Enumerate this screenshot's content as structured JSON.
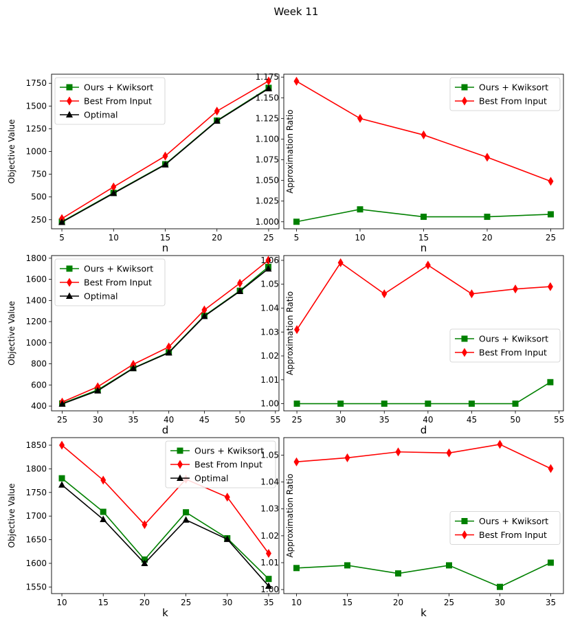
{
  "title": "Week 11",
  "chart_data": [
    {
      "type": "line",
      "xlabel": "n",
      "ylabel": "Objective Value",
      "x": [
        5,
        10,
        15,
        20,
        25
      ],
      "xticks": [
        5,
        10,
        15,
        20,
        25
      ],
      "yticks": [
        250,
        500,
        750,
        1000,
        1250,
        1500,
        1750
      ],
      "xlim": [
        4.0,
        26.0
      ],
      "ylim": [
        150,
        1850
      ],
      "legend": "top-left",
      "series": [
        {
          "name": "Ours + Kwiksort",
          "color": "#008000",
          "marker": "square",
          "values": [
            228,
            545,
            860,
            1340,
            1700
          ]
        },
        {
          "name": "Best From Input",
          "color": "#ff0000",
          "marker": "diamond",
          "values": [
            262,
            610,
            950,
            1444,
            1775
          ]
        },
        {
          "name": "Optimal",
          "color": "#000000",
          "marker": "triangle",
          "values": [
            222,
            540,
            855,
            1335,
            1692
          ]
        }
      ]
    },
    {
      "type": "line",
      "xlabel": "n",
      "ylabel": "Approximation Ratio",
      "x": [
        5,
        10,
        15,
        20,
        25
      ],
      "xticks": [
        5,
        10,
        15,
        20,
        25
      ],
      "yticks": [
        "1.000",
        "1.025",
        "1.050",
        "1.075",
        "1.100",
        "1.125",
        "1.150",
        "1.175"
      ],
      "xlim": [
        4.0,
        26.0
      ],
      "ylim": [
        0.9915,
        1.1785
      ],
      "legend": "top-right",
      "series": [
        {
          "name": "Ours + Kwiksort",
          "color": "#008000",
          "marker": "square",
          "values": [
            1.0,
            1.015,
            1.006,
            1.006,
            1.009
          ]
        },
        {
          "name": "Best From Input",
          "color": "#ff0000",
          "marker": "diamond",
          "values": [
            1.17,
            1.125,
            1.105,
            1.078,
            1.049
          ]
        }
      ]
    },
    {
      "type": "line",
      "xlabel": "d",
      "ylabel": "Objective Value",
      "x": [
        25,
        30,
        35,
        40,
        45,
        50,
        54
      ],
      "xticks": [
        25,
        30,
        35,
        40,
        45,
        50,
        55
      ],
      "yticks": [
        400,
        600,
        800,
        1000,
        1200,
        1400,
        1600,
        1800
      ],
      "xlim": [
        23.5,
        55.5
      ],
      "ylim": [
        355,
        1825
      ],
      "legend": "top-left",
      "series": [
        {
          "name": "Ours + Kwiksort",
          "color": "#008000",
          "marker": "square",
          "values": [
            425,
            553,
            760,
            910,
            1255,
            1492,
            1718
          ]
        },
        {
          "name": "Best From Input",
          "color": "#ff0000",
          "marker": "diamond",
          "values": [
            438,
            583,
            795,
            960,
            1310,
            1563,
            1780
          ]
        },
        {
          "name": "Optimal",
          "color": "#000000",
          "marker": "triangle",
          "values": [
            420,
            545,
            757,
            905,
            1250,
            1487,
            1700
          ]
        }
      ]
    },
    {
      "type": "line",
      "xlabel": "d",
      "ylabel": "Approximation Ratio",
      "x": [
        25,
        30,
        35,
        40,
        45,
        50,
        54
      ],
      "xticks": [
        25,
        30,
        35,
        40,
        45,
        50,
        55
      ],
      "yticks": [
        "1.00",
        "1.01",
        "1.02",
        "1.03",
        "1.04",
        "1.05",
        "1.06"
      ],
      "xlim": [
        23.5,
        55.5
      ],
      "ylim": [
        0.997,
        1.062
      ],
      "legend": "center-right",
      "series": [
        {
          "name": "Ours + Kwiksort",
          "color": "#008000",
          "marker": "square",
          "values": [
            1.0,
            1.0,
            1.0,
            1.0,
            1.0,
            1.0,
            1.009
          ]
        },
        {
          "name": "Best From Input",
          "color": "#ff0000",
          "marker": "diamond",
          "values": [
            1.031,
            1.059,
            1.046,
            1.058,
            1.046,
            1.048,
            1.049
          ]
        }
      ]
    },
    {
      "type": "line",
      "xlabel": "k",
      "ylabel": "Objective Value",
      "x": [
        10,
        15,
        20,
        25,
        30,
        35
      ],
      "xticks": [
        10,
        15,
        20,
        25,
        30,
        35
      ],
      "yticks": [
        1550,
        1600,
        1650,
        1700,
        1750,
        1800,
        1850
      ],
      "xlim": [
        8.75,
        36.25
      ],
      "ylim": [
        1536,
        1866
      ],
      "legend": "top-right",
      "series": [
        {
          "name": "Ours + Kwiksort",
          "color": "#008000",
          "marker": "square",
          "values": [
            1780,
            1709,
            1608,
            1708,
            1653,
            1567
          ]
        },
        {
          "name": "Best From Input",
          "color": "#ff0000",
          "marker": "diamond",
          "values": [
            1850,
            1776,
            1682,
            1778,
            1740,
            1621
          ]
        },
        {
          "name": "Optimal",
          "color": "#000000",
          "marker": "triangle",
          "values": [
            1766,
            1693,
            1600,
            1692,
            1651,
            1552
          ]
        }
      ]
    },
    {
      "type": "line",
      "xlabel": "k",
      "ylabel": "Approximation Ratio",
      "x": [
        10,
        15,
        20,
        25,
        30,
        35
      ],
      "xticks": [
        10,
        15,
        20,
        25,
        30,
        35
      ],
      "yticks": [
        "1.00",
        "1.01",
        "1.02",
        "1.03",
        "1.04",
        "1.05"
      ],
      "xlim": [
        8.75,
        36.25
      ],
      "ylim": [
        0.9985,
        1.0565
      ],
      "legend": "center-right",
      "series": [
        {
          "name": "Ours + Kwiksort",
          "color": "#008000",
          "marker": "square",
          "values": [
            1.008,
            1.009,
            1.006,
            1.009,
            1.001,
            1.01
          ]
        },
        {
          "name": "Best From Input",
          "color": "#ff0000",
          "marker": "diamond",
          "values": [
            1.0475,
            1.049,
            1.0512,
            1.0508,
            1.054,
            1.045
          ]
        }
      ]
    }
  ]
}
